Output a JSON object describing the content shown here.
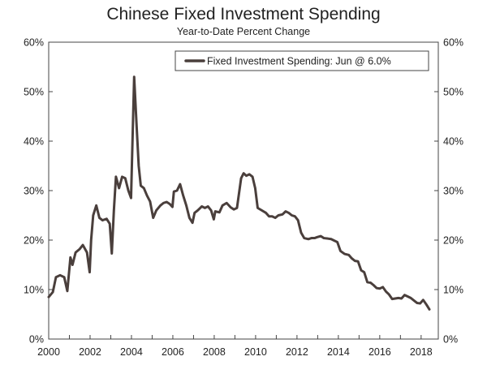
{
  "chart_data": {
    "type": "line",
    "title": "Chinese Fixed Investment Spending",
    "subtitle": "Year-to-Date Percent Change",
    "xlabel": "",
    "ylabel": "",
    "xlim": [
      2000.0,
      2018.83
    ],
    "ylim": [
      0,
      60
    ],
    "x_ticks": [
      2000,
      2002,
      2004,
      2006,
      2008,
      2010,
      2012,
      2014,
      2016,
      2018
    ],
    "x_tick_labels": [
      "2000",
      "2002",
      "2004",
      "2006",
      "2008",
      "2010",
      "2012",
      "2014",
      "2016",
      "2018"
    ],
    "y_ticks": [
      0,
      10,
      20,
      30,
      40,
      50,
      60
    ],
    "y_tick_labels_left": [
      "0%",
      "10%",
      "20%",
      "30%",
      "40%",
      "50%",
      "60%"
    ],
    "y_tick_labels_right": [
      "0%",
      "10%",
      "20%",
      "30%",
      "40%",
      "50%",
      "60%"
    ],
    "grid": false,
    "legend_position": "top-right",
    "series": [
      {
        "name": "Fixed Investment Spending: Jun @ 6.0%",
        "color": "#4a3f3c",
        "points": [
          [
            2000.0,
            8.5
          ],
          [
            2000.2,
            9.5
          ],
          [
            2000.35,
            12.5
          ],
          [
            2000.55,
            12.9
          ],
          [
            2000.75,
            12.5
          ],
          [
            2000.9,
            9.7
          ],
          [
            2001.05,
            16.5
          ],
          [
            2001.15,
            15.0
          ],
          [
            2001.3,
            17.5
          ],
          [
            2001.5,
            18.2
          ],
          [
            2001.65,
            19.0
          ],
          [
            2001.85,
            17.5
          ],
          [
            2001.98,
            13.5
          ],
          [
            2002.05,
            20.0
          ],
          [
            2002.15,
            25.0
          ],
          [
            2002.3,
            27.0
          ],
          [
            2002.45,
            24.5
          ],
          [
            2002.6,
            24.0
          ],
          [
            2002.8,
            24.3
          ],
          [
            2002.95,
            23.3
          ],
          [
            2003.05,
            17.3
          ],
          [
            2003.15,
            26.0
          ],
          [
            2003.25,
            32.8
          ],
          [
            2003.4,
            30.5
          ],
          [
            2003.55,
            32.8
          ],
          [
            2003.7,
            32.5
          ],
          [
            2003.85,
            30.0
          ],
          [
            2003.98,
            28.5
          ],
          [
            2004.05,
            40.0
          ],
          [
            2004.13,
            53.0
          ],
          [
            2004.25,
            43.0
          ],
          [
            2004.35,
            35.0
          ],
          [
            2004.45,
            31.0
          ],
          [
            2004.6,
            30.5
          ],
          [
            2004.75,
            29.0
          ],
          [
            2004.9,
            27.8
          ],
          [
            2005.05,
            24.5
          ],
          [
            2005.2,
            26.0
          ],
          [
            2005.4,
            27.0
          ],
          [
            2005.55,
            27.5
          ],
          [
            2005.7,
            27.7
          ],
          [
            2005.85,
            27.3
          ],
          [
            2005.98,
            26.7
          ],
          [
            2006.05,
            29.8
          ],
          [
            2006.2,
            30.0
          ],
          [
            2006.35,
            31.3
          ],
          [
            2006.5,
            29.0
          ],
          [
            2006.65,
            27.0
          ],
          [
            2006.8,
            24.5
          ],
          [
            2006.95,
            23.5
          ],
          [
            2007.05,
            25.5
          ],
          [
            2007.2,
            26.0
          ],
          [
            2007.4,
            26.8
          ],
          [
            2007.55,
            26.5
          ],
          [
            2007.7,
            26.8
          ],
          [
            2007.85,
            26.0
          ],
          [
            2007.98,
            24.2
          ],
          [
            2008.05,
            25.8
          ],
          [
            2008.25,
            25.6
          ],
          [
            2008.4,
            27.0
          ],
          [
            2008.6,
            27.5
          ],
          [
            2008.8,
            26.6
          ],
          [
            2008.95,
            26.2
          ],
          [
            2009.1,
            26.5
          ],
          [
            2009.3,
            32.5
          ],
          [
            2009.42,
            33.5
          ],
          [
            2009.55,
            33.0
          ],
          [
            2009.7,
            33.3
          ],
          [
            2009.85,
            32.8
          ],
          [
            2009.98,
            30.5
          ],
          [
            2010.1,
            26.5
          ],
          [
            2010.3,
            26.0
          ],
          [
            2010.5,
            25.5
          ],
          [
            2010.65,
            24.8
          ],
          [
            2010.8,
            24.8
          ],
          [
            2010.95,
            24.5
          ],
          [
            2011.1,
            25.0
          ],
          [
            2011.3,
            25.2
          ],
          [
            2011.45,
            25.8
          ],
          [
            2011.6,
            25.5
          ],
          [
            2011.75,
            25.0
          ],
          [
            2011.9,
            24.8
          ],
          [
            2012.05,
            24.0
          ],
          [
            2012.2,
            21.5
          ],
          [
            2012.35,
            20.4
          ],
          [
            2012.55,
            20.2
          ],
          [
            2012.7,
            20.4
          ],
          [
            2012.85,
            20.4
          ],
          [
            2012.98,
            20.6
          ],
          [
            2013.15,
            20.8
          ],
          [
            2013.3,
            20.4
          ],
          [
            2013.5,
            20.3
          ],
          [
            2013.65,
            20.2
          ],
          [
            2013.8,
            19.9
          ],
          [
            2013.95,
            19.6
          ],
          [
            2014.1,
            17.8
          ],
          [
            2014.3,
            17.2
          ],
          [
            2014.5,
            17.0
          ],
          [
            2014.65,
            16.3
          ],
          [
            2014.8,
            15.8
          ],
          [
            2014.95,
            15.7
          ],
          [
            2015.1,
            13.9
          ],
          [
            2015.25,
            13.5
          ],
          [
            2015.4,
            11.5
          ],
          [
            2015.55,
            11.4
          ],
          [
            2015.7,
            10.9
          ],
          [
            2015.85,
            10.3
          ],
          [
            2016.0,
            10.2
          ],
          [
            2016.15,
            10.5
          ],
          [
            2016.3,
            9.6
          ],
          [
            2016.45,
            9.0
          ],
          [
            2016.6,
            8.1
          ],
          [
            2016.75,
            8.2
          ],
          [
            2016.9,
            8.3
          ],
          [
            2017.05,
            8.2
          ],
          [
            2017.2,
            8.9
          ],
          [
            2017.35,
            8.6
          ],
          [
            2017.5,
            8.3
          ],
          [
            2017.65,
            7.8
          ],
          [
            2017.8,
            7.3
          ],
          [
            2017.95,
            7.2
          ],
          [
            2018.1,
            7.9
          ],
          [
            2018.25,
            7.0
          ],
          [
            2018.4,
            6.0
          ]
        ]
      }
    ]
  }
}
